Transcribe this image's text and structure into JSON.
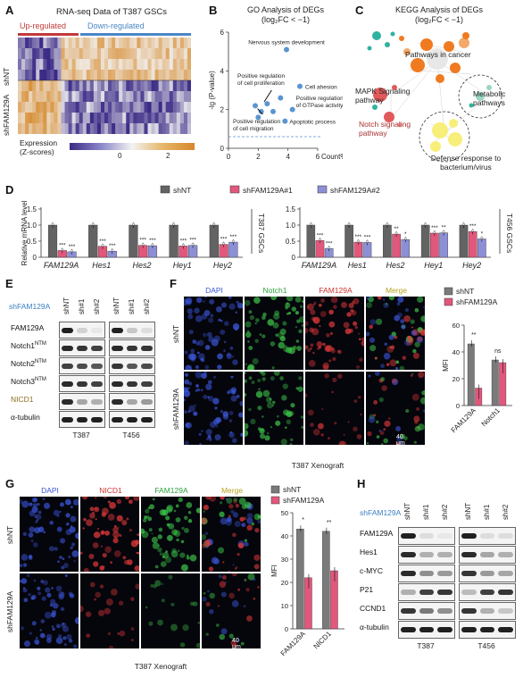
{
  "panels": {
    "A": {
      "label": "A",
      "title": "RNA-seq Data of T387 GSCs",
      "up_label": "Up-regulated",
      "down_label": "Down-regulated",
      "row_labels": [
        "shNT",
        "shFAM129A"
      ],
      "legend_title": "Expression\n(Z-scores)",
      "legend_ticks": [
        "0",
        "2"
      ],
      "colors": {
        "low": "#3b2a86",
        "mid": "#f2f2f2",
        "high": "#d5882a",
        "up": "#c33a3a",
        "down": "#4a86c5"
      }
    },
    "B": {
      "label": "B",
      "title_line1": "GO Analysis of DEGs",
      "title_line2": "(log₂FC < −1)",
      "chart_data": {
        "type": "scatter",
        "title": "GO Analysis of DEGs (log2FC < -1)",
        "xlabel": "Count%",
        "ylabel": "-lg (P-value)",
        "xlim": [
          0,
          6
        ],
        "ylim": [
          0,
          6
        ],
        "xticks": [
          "0",
          "2",
          "4",
          "6"
        ],
        "yticks": [
          "0",
          "2",
          "4",
          "6"
        ],
        "points": [
          {
            "x": 3.9,
            "y": 5.1
          },
          {
            "x": 4.8,
            "y": 3.2
          },
          {
            "x": 3.5,
            "y": 2.6
          },
          {
            "x": 4.3,
            "y": 2.0
          },
          {
            "x": 3.8,
            "y": 1.4
          },
          {
            "x": 1.8,
            "y": 2.2
          },
          {
            "x": 2.2,
            "y": 1.9
          },
          {
            "x": 2.6,
            "y": 2.3
          },
          {
            "x": 2.0,
            "y": 1.6
          },
          {
            "x": 3.0,
            "y": 1.9
          }
        ],
        "annotations": [
          "Nervous system development",
          "Cell ahesion",
          "Positive regulation\nof cell proliferation",
          "Positive regulation\nof GTPase activity",
          "Apoptotic process",
          "Positive regulation\nof cell migration"
        ],
        "threshold_y": 0.6
      }
    },
    "C": {
      "label": "C",
      "title_line1": "KEGG Analysis of DEGs",
      "title_line2": "(log₂FC < −1)",
      "clusters": [
        "Pathways in cancer",
        "MAPK Signaling\npathway",
        "Metabolic\npathways",
        "Notch signaling\npathway",
        "Defense response to\nbacterium/virus"
      ]
    },
    "D": {
      "label": "D",
      "legend": [
        "shNT",
        "shFAM129A#1",
        "shFAM129A#2"
      ],
      "colors": [
        "#636363",
        "#e2577c",
        "#8d8fd6"
      ],
      "charts": [
        {
          "type": "bar",
          "cell_line": "T387 GSCs",
          "ylabel": "Relative mRNA level",
          "ylim": [
            0,
            1.5
          ],
          "yticks": [
            "0",
            "0.5",
            "1.0",
            "1.5"
          ],
          "categories": [
            "FAM129A",
            "Hes1",
            "Hes2",
            "Hey1",
            "Hey2"
          ],
          "series": [
            {
              "name": "shNT",
              "values": [
                1.0,
                1.0,
                1.0,
                1.0,
                1.0
              ]
            },
            {
              "name": "shFAM129A#1",
              "values": [
                0.21,
                0.34,
                0.37,
                0.35,
                0.4
              ]
            },
            {
              "name": "shFAM129A#2",
              "values": [
                0.17,
                0.19,
                0.36,
                0.37,
                0.47
              ]
            }
          ],
          "sig": [
            [
              "***",
              "***"
            ],
            [
              "***",
              "***"
            ],
            [
              "***",
              "***"
            ],
            [
              "***",
              "***"
            ],
            [
              "***",
              "***"
            ]
          ]
        },
        {
          "type": "bar",
          "cell_line": "T456 GSCs",
          "ylim": [
            0,
            1.5
          ],
          "yticks": [
            "0",
            "0.5",
            "1.0",
            "1.5"
          ],
          "categories": [
            "FAM129A",
            "Hes1",
            "Hes2",
            "Hey1",
            "Hey2"
          ],
          "series": [
            {
              "name": "shNT",
              "values": [
                1.0,
                1.0,
                1.0,
                1.0,
                1.0
              ]
            },
            {
              "name": "shFAM129A#1",
              "values": [
                0.52,
                0.47,
                0.72,
                0.75,
                0.8
              ]
            },
            {
              "name": "shFAM129A#2",
              "values": [
                0.27,
                0.46,
                0.55,
                0.76,
                0.57
              ]
            }
          ],
          "sig": [
            [
              "***",
              "***"
            ],
            [
              "***",
              "***"
            ],
            [
              "**",
              "*"
            ],
            [
              "***",
              "**"
            ],
            [
              "***",
              "*"
            ]
          ]
        }
      ]
    },
    "E": {
      "label": "E",
      "header": "shFAM129A",
      "lanes": [
        "shNT",
        "sh#1",
        "sh#2"
      ],
      "rows": [
        "FAM129A",
        "Notch1NTM",
        "Notch2NTM",
        "Notch3NTM",
        "NICD1",
        "α-tubulin"
      ],
      "row_display": [
        {
          "base": "FAM129A",
          "sup": ""
        },
        {
          "base": "Notch1",
          "sup": "NTM"
        },
        {
          "base": "Notch2",
          "sup": "NTM"
        },
        {
          "base": "Notch3",
          "sup": "NTM"
        },
        {
          "base": "NICD1",
          "sup": ""
        },
        {
          "base": "α-tubulin",
          "sup": ""
        }
      ],
      "cell_lines": [
        "T387",
        "T456"
      ]
    },
    "F": {
      "label": "F",
      "channels": [
        "DAPI",
        "Notch1",
        "FAM129A",
        "Merge"
      ],
      "rows": [
        "shNT",
        "shFAM129A"
      ],
      "scale": "40 μm",
      "caption": "T387 Xenograft",
      "legend": [
        "shNT",
        "shFAM129A"
      ],
      "chart_data": {
        "type": "bar",
        "ylabel": "MFI",
        "ylim": [
          0,
          60
        ],
        "yticks": [
          "0",
          "20",
          "40",
          "60"
        ],
        "categories": [
          "FAM129A",
          "Notch1"
        ],
        "series": [
          {
            "name": "shNT",
            "values": [
              46,
              34
            ]
          },
          {
            "name": "shFAM129A",
            "values": [
              13,
              32
            ]
          }
        ],
        "sig": [
          "**",
          "ns"
        ]
      }
    },
    "G": {
      "label": "G",
      "channels": [
        "DAPI",
        "NICD1",
        "FAM129A",
        "Merge"
      ],
      "rows": [
        "shNT",
        "shFAM129A"
      ],
      "scale": "40 μm",
      "caption": "T387 Xenograft",
      "legend": [
        "shNT",
        "shFAM129A"
      ],
      "chart_data": {
        "type": "bar",
        "ylabel": "MFI",
        "ylim": [
          0,
          50
        ],
        "yticks": [
          "0",
          "10",
          "20",
          "30",
          "40",
          "50"
        ],
        "categories": [
          "FAM129A",
          "NICD1"
        ],
        "series": [
          {
            "name": "shNT",
            "values": [
              43,
              42
            ]
          },
          {
            "name": "shFAM129A",
            "values": [
              22,
              25
            ]
          }
        ],
        "sig": [
          "*",
          "**"
        ]
      }
    },
    "H": {
      "label": "H",
      "header": "shFAM129A",
      "lanes": [
        "shNT",
        "sh#1",
        "sh#2"
      ],
      "rows": [
        "FAM129A",
        "Hes1",
        "c-MYC",
        "P21",
        "CCND1",
        "α-tubulin"
      ],
      "cell_lines": [
        "T387",
        "T456"
      ]
    }
  }
}
